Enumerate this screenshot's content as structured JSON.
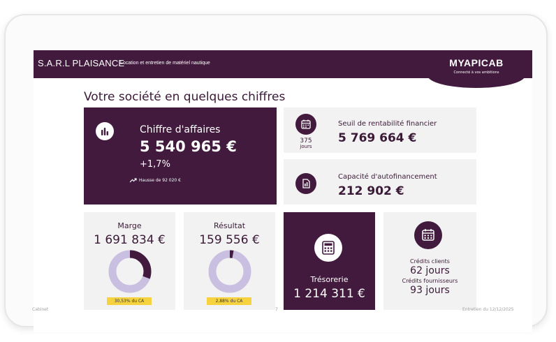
{
  "header": {
    "company": "S.A.R.L PLAISANCE",
    "subtitle": "Location et entretien de matériel nautique",
    "logo": "MYAPICAB",
    "tagline": "Connecté à vos ambitions"
  },
  "page_title": "Votre société en quelques chiffres",
  "chiffre_affaires": {
    "label": "Chiffre d'affaires",
    "value": "5 540 965 €",
    "change": "+1,7%",
    "trend": "Hausse de 92 020 €"
  },
  "seuil": {
    "days_value": "375",
    "days_unit": "jours",
    "label": "Seuil de rentabilité financier",
    "value": "5 769 664 €"
  },
  "capacite": {
    "label": "Capacité d'autofinancement",
    "value": "212 902 €"
  },
  "marge": {
    "label": "Marge",
    "value": "1 691 834 €",
    "badge": "30,53% du CA",
    "percent": 30.53
  },
  "resultat": {
    "label": "Résultat",
    "value": "159 556 €",
    "badge": "2,88% du CA",
    "percent": 2.88
  },
  "tresorerie": {
    "label": "Trésorerie",
    "value": "1 214 311 €"
  },
  "credits": {
    "clients_label": "Crédits clients",
    "clients_value": "62 jours",
    "fournisseurs_label": "Crédits fournisseurs",
    "fournisseurs_value": "93 jours"
  },
  "footer": {
    "left": "Cabinet",
    "center": "7",
    "right": "Entretien du 12/12/2025"
  },
  "colors": {
    "brand": "#411a3d",
    "tile_light": "#f2f2f2",
    "donut_track": "#c9bfe0",
    "donut_fill": "#411a3d",
    "badge": "#f5d23e"
  }
}
